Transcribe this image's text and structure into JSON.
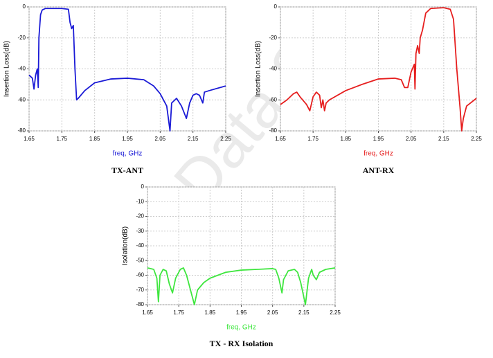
{
  "watermark": "Data Sh",
  "chart_data": [
    {
      "type": "line",
      "title": "TX-ANT",
      "xlabel": "freq, GHz",
      "ylabel": "Insertion Loss(dB)",
      "color": "#1a1ad6",
      "grid": true,
      "xlim": [
        1.65,
        2.25
      ],
      "ylim": [
        -80,
        0
      ],
      "xticks": [
        1.65,
        1.75,
        1.85,
        1.95,
        2.05,
        2.15,
        2.25
      ],
      "yticks": [
        -80,
        -60,
        -40,
        -20,
        0
      ],
      "x": [
        1.65,
        1.66,
        1.665,
        1.67,
        1.675,
        1.678,
        1.68,
        1.685,
        1.69,
        1.7,
        1.75,
        1.77,
        1.775,
        1.78,
        1.785,
        1.79,
        1.795,
        1.8,
        1.82,
        1.85,
        1.9,
        1.95,
        2.0,
        2.03,
        2.05,
        2.07,
        2.08,
        2.085,
        2.1,
        2.115,
        2.13,
        2.14,
        2.15,
        2.16,
        2.17,
        2.18,
        2.185,
        2.2,
        2.25
      ],
      "values": [
        -44,
        -46,
        -53,
        -44,
        -40,
        -52,
        -20,
        -5,
        -2,
        -1,
        -1,
        -1.5,
        -10,
        -14,
        -12,
        -40,
        -60,
        -59,
        -54,
        -49,
        -46.5,
        -46,
        -47,
        -51,
        -56,
        -64,
        -80,
        -62,
        -59,
        -64,
        -72,
        -62,
        -57,
        -56,
        -57,
        -62,
        -55,
        -54,
        -51
      ]
    },
    {
      "type": "line",
      "title": "ANT-RX",
      "xlabel": "freq, GHz",
      "ylabel": "Insertion Loss(dB)",
      "color": "#e61e1e",
      "grid": true,
      "xlim": [
        1.65,
        2.25
      ],
      "ylim": [
        -80,
        0
      ],
      "xticks": [
        1.65,
        1.75,
        1.85,
        1.95,
        2.05,
        2.15,
        2.25
      ],
      "yticks": [
        -80,
        -60,
        -40,
        -20,
        0
      ],
      "x": [
        1.65,
        1.67,
        1.68,
        1.69,
        1.7,
        1.71,
        1.73,
        1.74,
        1.75,
        1.76,
        1.77,
        1.775,
        1.78,
        1.785,
        1.79,
        1.8,
        1.85,
        1.9,
        1.95,
        2.0,
        2.02,
        2.03,
        2.04,
        2.05,
        2.06,
        2.062,
        2.065,
        2.07,
        2.075,
        2.078,
        2.085,
        2.095,
        2.11,
        2.15,
        2.17,
        2.18,
        2.19,
        2.2,
        2.205,
        2.21,
        2.22,
        2.25
      ],
      "values": [
        -63,
        -60,
        -58,
        -56,
        -55,
        -58,
        -63,
        -67,
        -58,
        -55,
        -57,
        -65,
        -60,
        -67,
        -62,
        -60,
        -54,
        -50,
        -46.5,
        -46,
        -47,
        -52,
        -52,
        -42,
        -37,
        -53,
        -30,
        -25,
        -30,
        -20,
        -15,
        -4,
        -1,
        -0.5,
        -1.5,
        -8,
        -40,
        -65,
        -80,
        -72,
        -64,
        -59
      ]
    },
    {
      "type": "line",
      "title": "TX - RX Isolation",
      "xlabel": "freq, GHz",
      "ylabel": "Isolation(dB)",
      "color": "#3ee63e",
      "grid": true,
      "xlim": [
        1.65,
        2.25
      ],
      "ylim": [
        -80,
        0
      ],
      "xticks": [
        1.65,
        1.75,
        1.85,
        1.95,
        2.05,
        2.15,
        2.25
      ],
      "yticks": [
        -80,
        -70,
        -60,
        -50,
        -40,
        -30,
        -20,
        -10,
        0
      ],
      "x": [
        1.65,
        1.67,
        1.68,
        1.685,
        1.69,
        1.7,
        1.71,
        1.72,
        1.73,
        1.74,
        1.755,
        1.765,
        1.775,
        1.79,
        1.8,
        1.81,
        1.83,
        1.85,
        1.9,
        1.95,
        2.0,
        2.05,
        2.06,
        2.07,
        2.08,
        2.085,
        2.1,
        2.12,
        2.13,
        2.14,
        2.155,
        2.165,
        2.175,
        2.18,
        2.19,
        2.2,
        2.22,
        2.25
      ],
      "values": [
        -55,
        -56,
        -62,
        -78,
        -60,
        -56,
        -57,
        -66,
        -72,
        -62,
        -56,
        -55,
        -60,
        -72,
        -80,
        -70,
        -65,
        -62,
        -58,
        -56.5,
        -56,
        -55.5,
        -56,
        -62,
        -72,
        -63,
        -57,
        -56,
        -58,
        -65,
        -80,
        -62,
        -56,
        -60,
        -63,
        -58,
        -56,
        -55
      ]
    }
  ]
}
